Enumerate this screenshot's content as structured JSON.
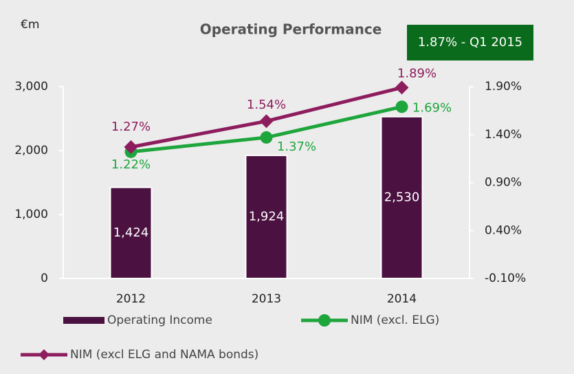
{
  "chart_data": {
    "type": "bar-line",
    "title": "Operating Performance",
    "y_label": "€m",
    "annotation": "1.87% - Q1 2015",
    "annotation_color": "#0b6b1c",
    "categories": [
      "2012",
      "2013",
      "2014"
    ],
    "ylim": [
      0,
      3000
    ],
    "yticks": [
      0,
      {
        "value": 1000,
        "label": "1,000"
      },
      {
        "value": 2000,
        "label": "2,000"
      },
      {
        "value": 3000,
        "label": "3,000"
      }
    ],
    "y2lim": [
      -0.1,
      1.9
    ],
    "y2ticks": [
      {
        "value": -0.1,
        "label": "-0.10%"
      },
      {
        "value": 0.4,
        "label": "0.40%"
      },
      {
        "value": 0.9,
        "label": "0.90%"
      },
      {
        "value": 1.4,
        "label": "1.40%"
      },
      {
        "value": 1.9,
        "label": "1.90%"
      }
    ],
    "legend": "bottom",
    "series": [
      {
        "name": "Operating Income",
        "type": "bar",
        "color": "#4a1141",
        "values": [
          1424,
          1924,
          2530
        ],
        "value_labels": [
          "1,424",
          "1,924",
          "2,530"
        ]
      },
      {
        "name": "NIM (excl. ELG)",
        "type": "line",
        "marker": "circle",
        "axis": "y2",
        "color": "#1ea53c",
        "values": [
          1.22,
          1.37,
          1.69
        ],
        "value_labels": [
          "1.22%",
          "1.37%",
          "1.69%"
        ]
      },
      {
        "name": "NIM (excl ELG and NAMA bonds)",
        "type": "line",
        "marker": "diamond",
        "axis": "y2",
        "color": "#8e1d5e",
        "values": [
          1.27,
          1.54,
          1.89
        ],
        "value_labels": [
          "1.27%",
          "1.54%",
          "1.89%"
        ]
      }
    ]
  }
}
